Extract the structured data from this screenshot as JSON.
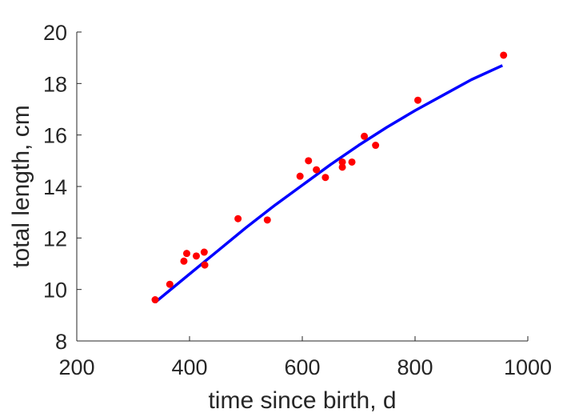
{
  "chart_data": {
    "type": "scatter",
    "xlabel": "time since birth, d",
    "ylabel": "total length, cm",
    "xlim": [
      200,
      1000
    ],
    "ylim": [
      8,
      20
    ],
    "xticks": [
      200,
      400,
      600,
      800,
      1000
    ],
    "yticks": [
      8,
      10,
      12,
      14,
      16,
      18,
      20
    ],
    "grid": false,
    "series": [
      {
        "type": "scatter",
        "color": "#ff0000",
        "points": [
          {
            "x": 339,
            "y": 9.6
          },
          {
            "x": 365,
            "y": 10.2
          },
          {
            "x": 390,
            "y": 11.1
          },
          {
            "x": 395,
            "y": 11.4
          },
          {
            "x": 412,
            "y": 11.3
          },
          {
            "x": 426,
            "y": 11.45
          },
          {
            "x": 427,
            "y": 10.95
          },
          {
            "x": 486,
            "y": 12.75
          },
          {
            "x": 538,
            "y": 12.7
          },
          {
            "x": 596,
            "y": 14.4
          },
          {
            "x": 611,
            "y": 15.0
          },
          {
            "x": 625,
            "y": 14.65
          },
          {
            "x": 641,
            "y": 14.35
          },
          {
            "x": 671,
            "y": 14.95
          },
          {
            "x": 671,
            "y": 14.75
          },
          {
            "x": 688,
            "y": 14.95
          },
          {
            "x": 710,
            "y": 15.95
          },
          {
            "x": 730,
            "y": 15.6
          },
          {
            "x": 805,
            "y": 17.35
          },
          {
            "x": 957,
            "y": 19.1
          }
        ]
      },
      {
        "type": "line",
        "color": "#0000ff",
        "points": [
          {
            "x": 339,
            "y": 9.5
          },
          {
            "x": 400,
            "y": 10.6
          },
          {
            "x": 450,
            "y": 11.5
          },
          {
            "x": 500,
            "y": 12.4
          },
          {
            "x": 550,
            "y": 13.25
          },
          {
            "x": 600,
            "y": 14.05
          },
          {
            "x": 650,
            "y": 14.85
          },
          {
            "x": 700,
            "y": 15.6
          },
          {
            "x": 750,
            "y": 16.3
          },
          {
            "x": 800,
            "y": 16.95
          },
          {
            "x": 850,
            "y": 17.55
          },
          {
            "x": 900,
            "y": 18.15
          },
          {
            "x": 955,
            "y": 18.7
          }
        ]
      }
    ]
  }
}
